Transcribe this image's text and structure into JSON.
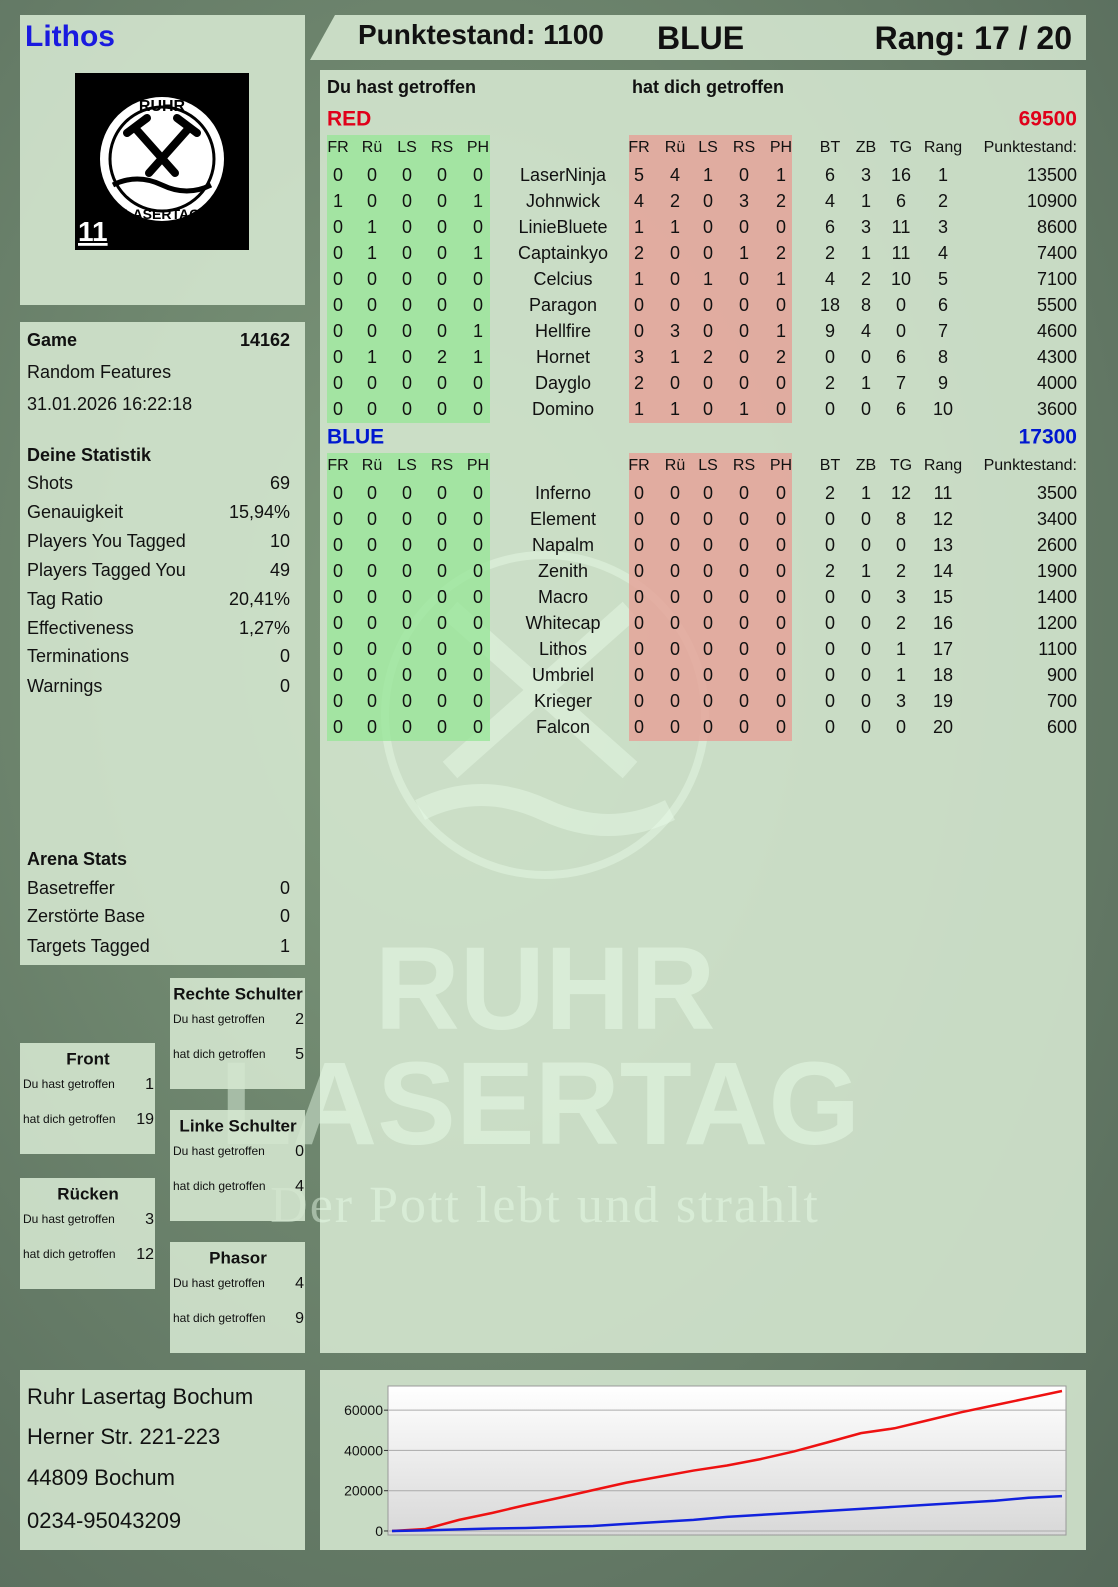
{
  "header": {
    "player": "Lithos",
    "score": "Punktestand: 1100",
    "team": "BLUE",
    "rank": "Rang: 17 / 20"
  },
  "logo": {
    "top": "RUHR",
    "bottom": "LASERTAG",
    "badge": "11"
  },
  "game": {
    "label": "Game",
    "id": 14162,
    "mode": "Random Features",
    "date": "31.01.2026 16:22:18"
  },
  "stats": {
    "title": "Deine Statistik",
    "rows": [
      [
        "Shots",
        69
      ],
      [
        "Genauigkeit",
        "15,94%"
      ],
      [
        "Players You Tagged",
        10
      ],
      [
        "Players Tagged You",
        49
      ],
      [
        "Tag Ratio",
        "20,41%"
      ],
      [
        "Effectiveness",
        "1,27%"
      ],
      [
        "Terminations",
        0
      ],
      [
        "Warnings",
        0
      ]
    ]
  },
  "arena": {
    "title": "Arena Stats",
    "rows": [
      [
        "Basetreffer",
        0
      ],
      [
        "Zerstörte Base",
        0
      ],
      [
        "Targets Tagged",
        1
      ]
    ]
  },
  "zones": [
    {
      "title": "Rechte Schulter",
      "rows": [
        [
          "Du hast getroffen",
          2
        ],
        [
          "hat dich getroffen",
          5
        ]
      ]
    },
    {
      "title": "Front",
      "rows": [
        [
          "Du hast getroffen",
          1
        ],
        [
          "hat dich getroffen",
          19
        ]
      ]
    },
    {
      "title": "Linke Schulter",
      "rows": [
        [
          "Du hast getroffen",
          0
        ],
        [
          "hat dich getroffen",
          4
        ]
      ]
    },
    {
      "title": "Rücken",
      "rows": [
        [
          "Du hast getroffen",
          3
        ],
        [
          "hat dich getroffen",
          12
        ]
      ]
    },
    {
      "title": "Phasor",
      "rows": [
        [
          "Du hast getroffen",
          4
        ],
        [
          "hat dich getroffen",
          9
        ]
      ]
    }
  ],
  "table": {
    "given_heading": "Du hast getroffen",
    "taken_heading": "hat dich getroffen",
    "hit_columns": [
      "FR",
      "Rü",
      "LS",
      "RS",
      "PH"
    ],
    "stat_columns": [
      "BT",
      "ZB",
      "TG",
      "Rang",
      "Punktestand:"
    ],
    "teams": [
      {
        "name": "RED",
        "color": "#e0001a",
        "score": 69500,
        "rows": [
          {
            "name": "LaserNinja",
            "given": [
              0,
              0,
              0,
              0,
              0
            ],
            "taken": [
              5,
              4,
              1,
              0,
              1
            ],
            "stats": [
              6,
              3,
              16,
              1,
              13500
            ]
          },
          {
            "name": "Johnwick",
            "given": [
              1,
              0,
              0,
              0,
              1
            ],
            "taken": [
              4,
              2,
              0,
              3,
              2
            ],
            "stats": [
              4,
              1,
              6,
              2,
              10900
            ]
          },
          {
            "name": "LinieBluete",
            "given": [
              0,
              1,
              0,
              0,
              0
            ],
            "taken": [
              1,
              1,
              0,
              0,
              0
            ],
            "stats": [
              6,
              3,
              11,
              3,
              8600
            ]
          },
          {
            "name": "Captainkyo",
            "given": [
              0,
              1,
              0,
              0,
              1
            ],
            "taken": [
              2,
              0,
              0,
              1,
              2
            ],
            "stats": [
              2,
              1,
              11,
              4,
              7400
            ]
          },
          {
            "name": "Celcius",
            "given": [
              0,
              0,
              0,
              0,
              0
            ],
            "taken": [
              1,
              0,
              1,
              0,
              1
            ],
            "stats": [
              4,
              2,
              10,
              5,
              7100
            ]
          },
          {
            "name": "Paragon",
            "given": [
              0,
              0,
              0,
              0,
              0
            ],
            "taken": [
              0,
              0,
              0,
              0,
              0
            ],
            "stats": [
              18,
              8,
              0,
              6,
              5500
            ]
          },
          {
            "name": "Hellfire",
            "given": [
              0,
              0,
              0,
              0,
              1
            ],
            "taken": [
              0,
              3,
              0,
              0,
              1
            ],
            "stats": [
              9,
              4,
              0,
              7,
              4600
            ]
          },
          {
            "name": "Hornet",
            "given": [
              0,
              1,
              0,
              2,
              1
            ],
            "taken": [
              3,
              1,
              2,
              0,
              2
            ],
            "stats": [
              0,
              0,
              6,
              8,
              4300
            ]
          },
          {
            "name": "Dayglo",
            "given": [
              0,
              0,
              0,
              0,
              0
            ],
            "taken": [
              2,
              0,
              0,
              0,
              0
            ],
            "stats": [
              2,
              1,
              7,
              9,
              4000
            ]
          },
          {
            "name": "Domino",
            "given": [
              0,
              0,
              0,
              0,
              0
            ],
            "taken": [
              1,
              1,
              0,
              1,
              0
            ],
            "stats": [
              0,
              0,
              6,
              10,
              3600
            ]
          }
        ]
      },
      {
        "name": "BLUE",
        "color": "#0018d0",
        "score": 17300,
        "rows": [
          {
            "name": "Inferno",
            "given": [
              0,
              0,
              0,
              0,
              0
            ],
            "taken": [
              0,
              0,
              0,
              0,
              0
            ],
            "stats": [
              2,
              1,
              12,
              11,
              3500
            ]
          },
          {
            "name": "Element",
            "given": [
              0,
              0,
              0,
              0,
              0
            ],
            "taken": [
              0,
              0,
              0,
              0,
              0
            ],
            "stats": [
              0,
              0,
              8,
              12,
              3400
            ]
          },
          {
            "name": "Napalm",
            "given": [
              0,
              0,
              0,
              0,
              0
            ],
            "taken": [
              0,
              0,
              0,
              0,
              0
            ],
            "stats": [
              0,
              0,
              0,
              13,
              2600
            ]
          },
          {
            "name": "Zenith",
            "given": [
              0,
              0,
              0,
              0,
              0
            ],
            "taken": [
              0,
              0,
              0,
              0,
              0
            ],
            "stats": [
              2,
              1,
              2,
              14,
              1900
            ]
          },
          {
            "name": "Macro",
            "given": [
              0,
              0,
              0,
              0,
              0
            ],
            "taken": [
              0,
              0,
              0,
              0,
              0
            ],
            "stats": [
              0,
              0,
              3,
              15,
              1400
            ]
          },
          {
            "name": "Whitecap",
            "given": [
              0,
              0,
              0,
              0,
              0
            ],
            "taken": [
              0,
              0,
              0,
              0,
              0
            ],
            "stats": [
              0,
              0,
              2,
              16,
              1200
            ]
          },
          {
            "name": "Lithos",
            "given": [
              0,
              0,
              0,
              0,
              0
            ],
            "taken": [
              0,
              0,
              0,
              0,
              0
            ],
            "stats": [
              0,
              0,
              1,
              17,
              1100
            ]
          },
          {
            "name": "Umbriel",
            "given": [
              0,
              0,
              0,
              0,
              0
            ],
            "taken": [
              0,
              0,
              0,
              0,
              0
            ],
            "stats": [
              0,
              0,
              1,
              18,
              900
            ]
          },
          {
            "name": "Krieger",
            "given": [
              0,
              0,
              0,
              0,
              0
            ],
            "taken": [
              0,
              0,
              0,
              0,
              0
            ],
            "stats": [
              0,
              0,
              3,
              19,
              700
            ]
          },
          {
            "name": "Falcon",
            "given": [
              0,
              0,
              0,
              0,
              0
            ],
            "taken": [
              0,
              0,
              0,
              0,
              0
            ],
            "stats": [
              0,
              0,
              0,
              20,
              600
            ]
          }
        ]
      }
    ]
  },
  "watermark": {
    "line1": "RUHR",
    "line2": "LASERTAG",
    "slogan": "Der Pott lebt und strahlt"
  },
  "address": [
    "Ruhr Lasertag Bochum",
    "Herner Str. 221-223",
    "44809 Bochum",
    "0234-95043209"
  ],
  "chart_data": {
    "type": "line",
    "x": [
      0,
      1,
      2,
      3,
      4,
      5,
      6,
      7,
      8,
      9,
      10,
      11,
      12,
      13,
      14,
      15,
      16,
      17,
      18,
      19,
      20
    ],
    "xlim": [
      0,
      20
    ],
    "ylim": [
      -2000,
      72000
    ],
    "yticks": [
      0,
      20000,
      40000,
      60000
    ],
    "grid": true,
    "series": [
      {
        "color": "#ee1111",
        "values": [
          0,
          1000,
          5500,
          9000,
          12900,
          16500,
          20300,
          24000,
          27000,
          30000,
          32500,
          35700,
          39500,
          44000,
          48600,
          51000,
          55000,
          59000,
          62500,
          66000,
          69500
        ]
      },
      {
        "color": "#1122dd",
        "values": [
          0,
          300,
          800,
          1200,
          1500,
          2000,
          2500,
          3500,
          4500,
          5500,
          7000,
          8000,
          9000,
          10000,
          11000,
          12000,
          13000,
          14000,
          15000,
          16500,
          17300
        ]
      }
    ]
  }
}
